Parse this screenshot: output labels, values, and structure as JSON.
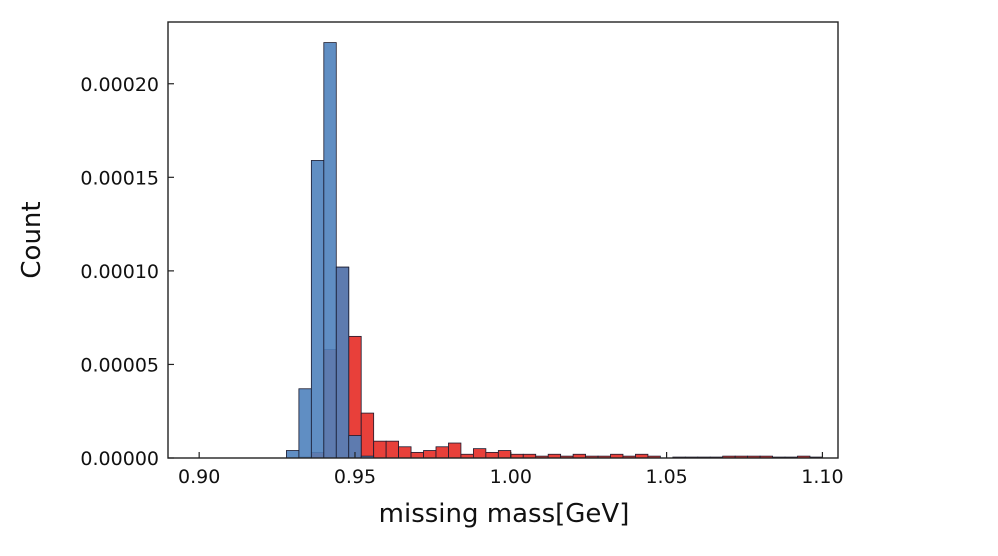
{
  "chart_data": {
    "type": "bar",
    "title": "",
    "xlabel": "missing mass[GeV]",
    "ylabel": "Count",
    "xlim": [
      0.89,
      1.105
    ],
    "ylim": [
      0,
      0.000233
    ],
    "x_ticks": [
      0.9,
      0.95,
      1.0,
      1.05,
      1.1
    ],
    "x_tick_labels": [
      "0.90",
      "0.95",
      "1.00",
      "1.05",
      "1.10"
    ],
    "y_ticks": [
      0,
      5e-05,
      0.0001,
      0.00015,
      0.0002
    ],
    "y_tick_labels": [
      "0.00000",
      "0.00005",
      "0.00010",
      "0.00015",
      "0.00020"
    ],
    "grid": false,
    "legend": "none",
    "bin_edges": [
      0.904,
      0.908,
      0.912,
      0.916,
      0.92,
      0.924,
      0.928,
      0.932,
      0.936,
      0.94,
      0.944,
      0.948,
      0.952,
      0.956,
      0.96,
      0.964,
      0.968,
      0.972,
      0.976,
      0.98,
      0.984,
      0.988,
      0.992,
      0.996,
      1.0,
      1.004,
      1.008,
      1.012,
      1.016,
      1.02,
      1.024,
      1.028,
      1.032,
      1.036,
      1.04,
      1.044,
      1.048,
      1.052,
      1.056,
      1.06,
      1.064,
      1.068,
      1.072,
      1.076,
      1.08,
      1.084,
      1.088,
      1.092,
      1.096,
      1.1
    ],
    "series": [
      {
        "color": "#e8403a",
        "values": [
          0,
          0,
          0,
          0,
          0,
          0,
          0,
          5e-07,
          3e-06,
          5.8e-05,
          0.000102,
          6.5e-05,
          2.4e-05,
          9e-06,
          9e-06,
          6e-06,
          3e-06,
          4e-06,
          6e-06,
          8e-06,
          2e-06,
          5e-06,
          3e-06,
          4e-06,
          2e-06,
          2e-06,
          1e-06,
          2e-06,
          1e-06,
          2e-06,
          1e-06,
          1e-06,
          2e-06,
          1e-06,
          2e-06,
          1e-06,
          0,
          5e-07,
          5e-07,
          5e-07,
          5e-07,
          1e-06,
          1e-06,
          1e-06,
          1e-06,
          5e-07,
          5e-07,
          1e-06,
          5e-07
        ]
      },
      {
        "color": "#4f82bd",
        "values": [
          0,
          0,
          0,
          0,
          0,
          0,
          4e-06,
          3.7e-05,
          0.000159,
          0.000222,
          0.000102,
          1.2e-05,
          1e-06,
          0,
          0,
          0,
          0,
          0,
          0,
          0,
          0,
          0,
          0,
          0,
          0,
          0,
          0,
          0,
          0,
          0,
          0,
          0,
          0,
          0,
          0,
          0,
          0,
          0,
          0,
          0,
          0,
          0,
          0,
          0,
          0,
          0,
          0,
          0,
          0
        ]
      }
    ]
  }
}
